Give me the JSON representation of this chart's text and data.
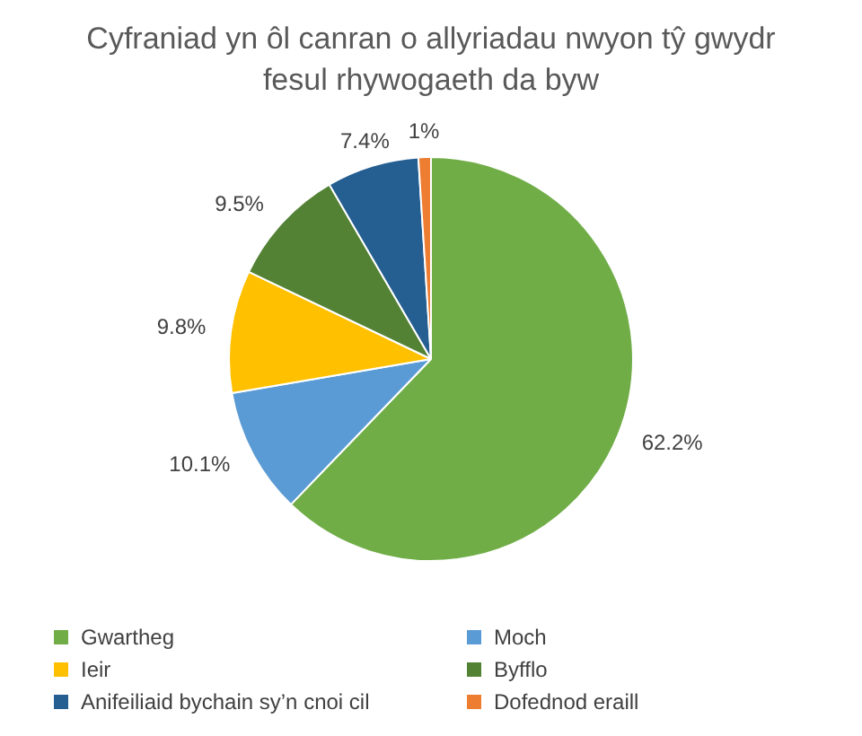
{
  "chart_data": {
    "type": "pie",
    "title": "Cyfraniad yn ôl canran o allyriadau nwyon tŷ gwydr fesul rhywogaeth da byw",
    "categories": [
      "Gwartheg",
      "Moch",
      "Ieir",
      "Byfflo",
      "Anifeiliaid bychain sy’n cnoi cil",
      "Dofednod eraill"
    ],
    "values": [
      62.2,
      10.1,
      9.8,
      9.5,
      7.4,
      1
    ],
    "colors": [
      "#70ad47",
      "#5b9bd5",
      "#ffc000",
      "#548235",
      "#255e91",
      "#ed7d31"
    ],
    "value_labels": [
      "62.2%",
      "10.1%",
      "9.8%",
      "9.5%",
      "7.4%",
      "1%"
    ],
    "legend": "bottom"
  }
}
